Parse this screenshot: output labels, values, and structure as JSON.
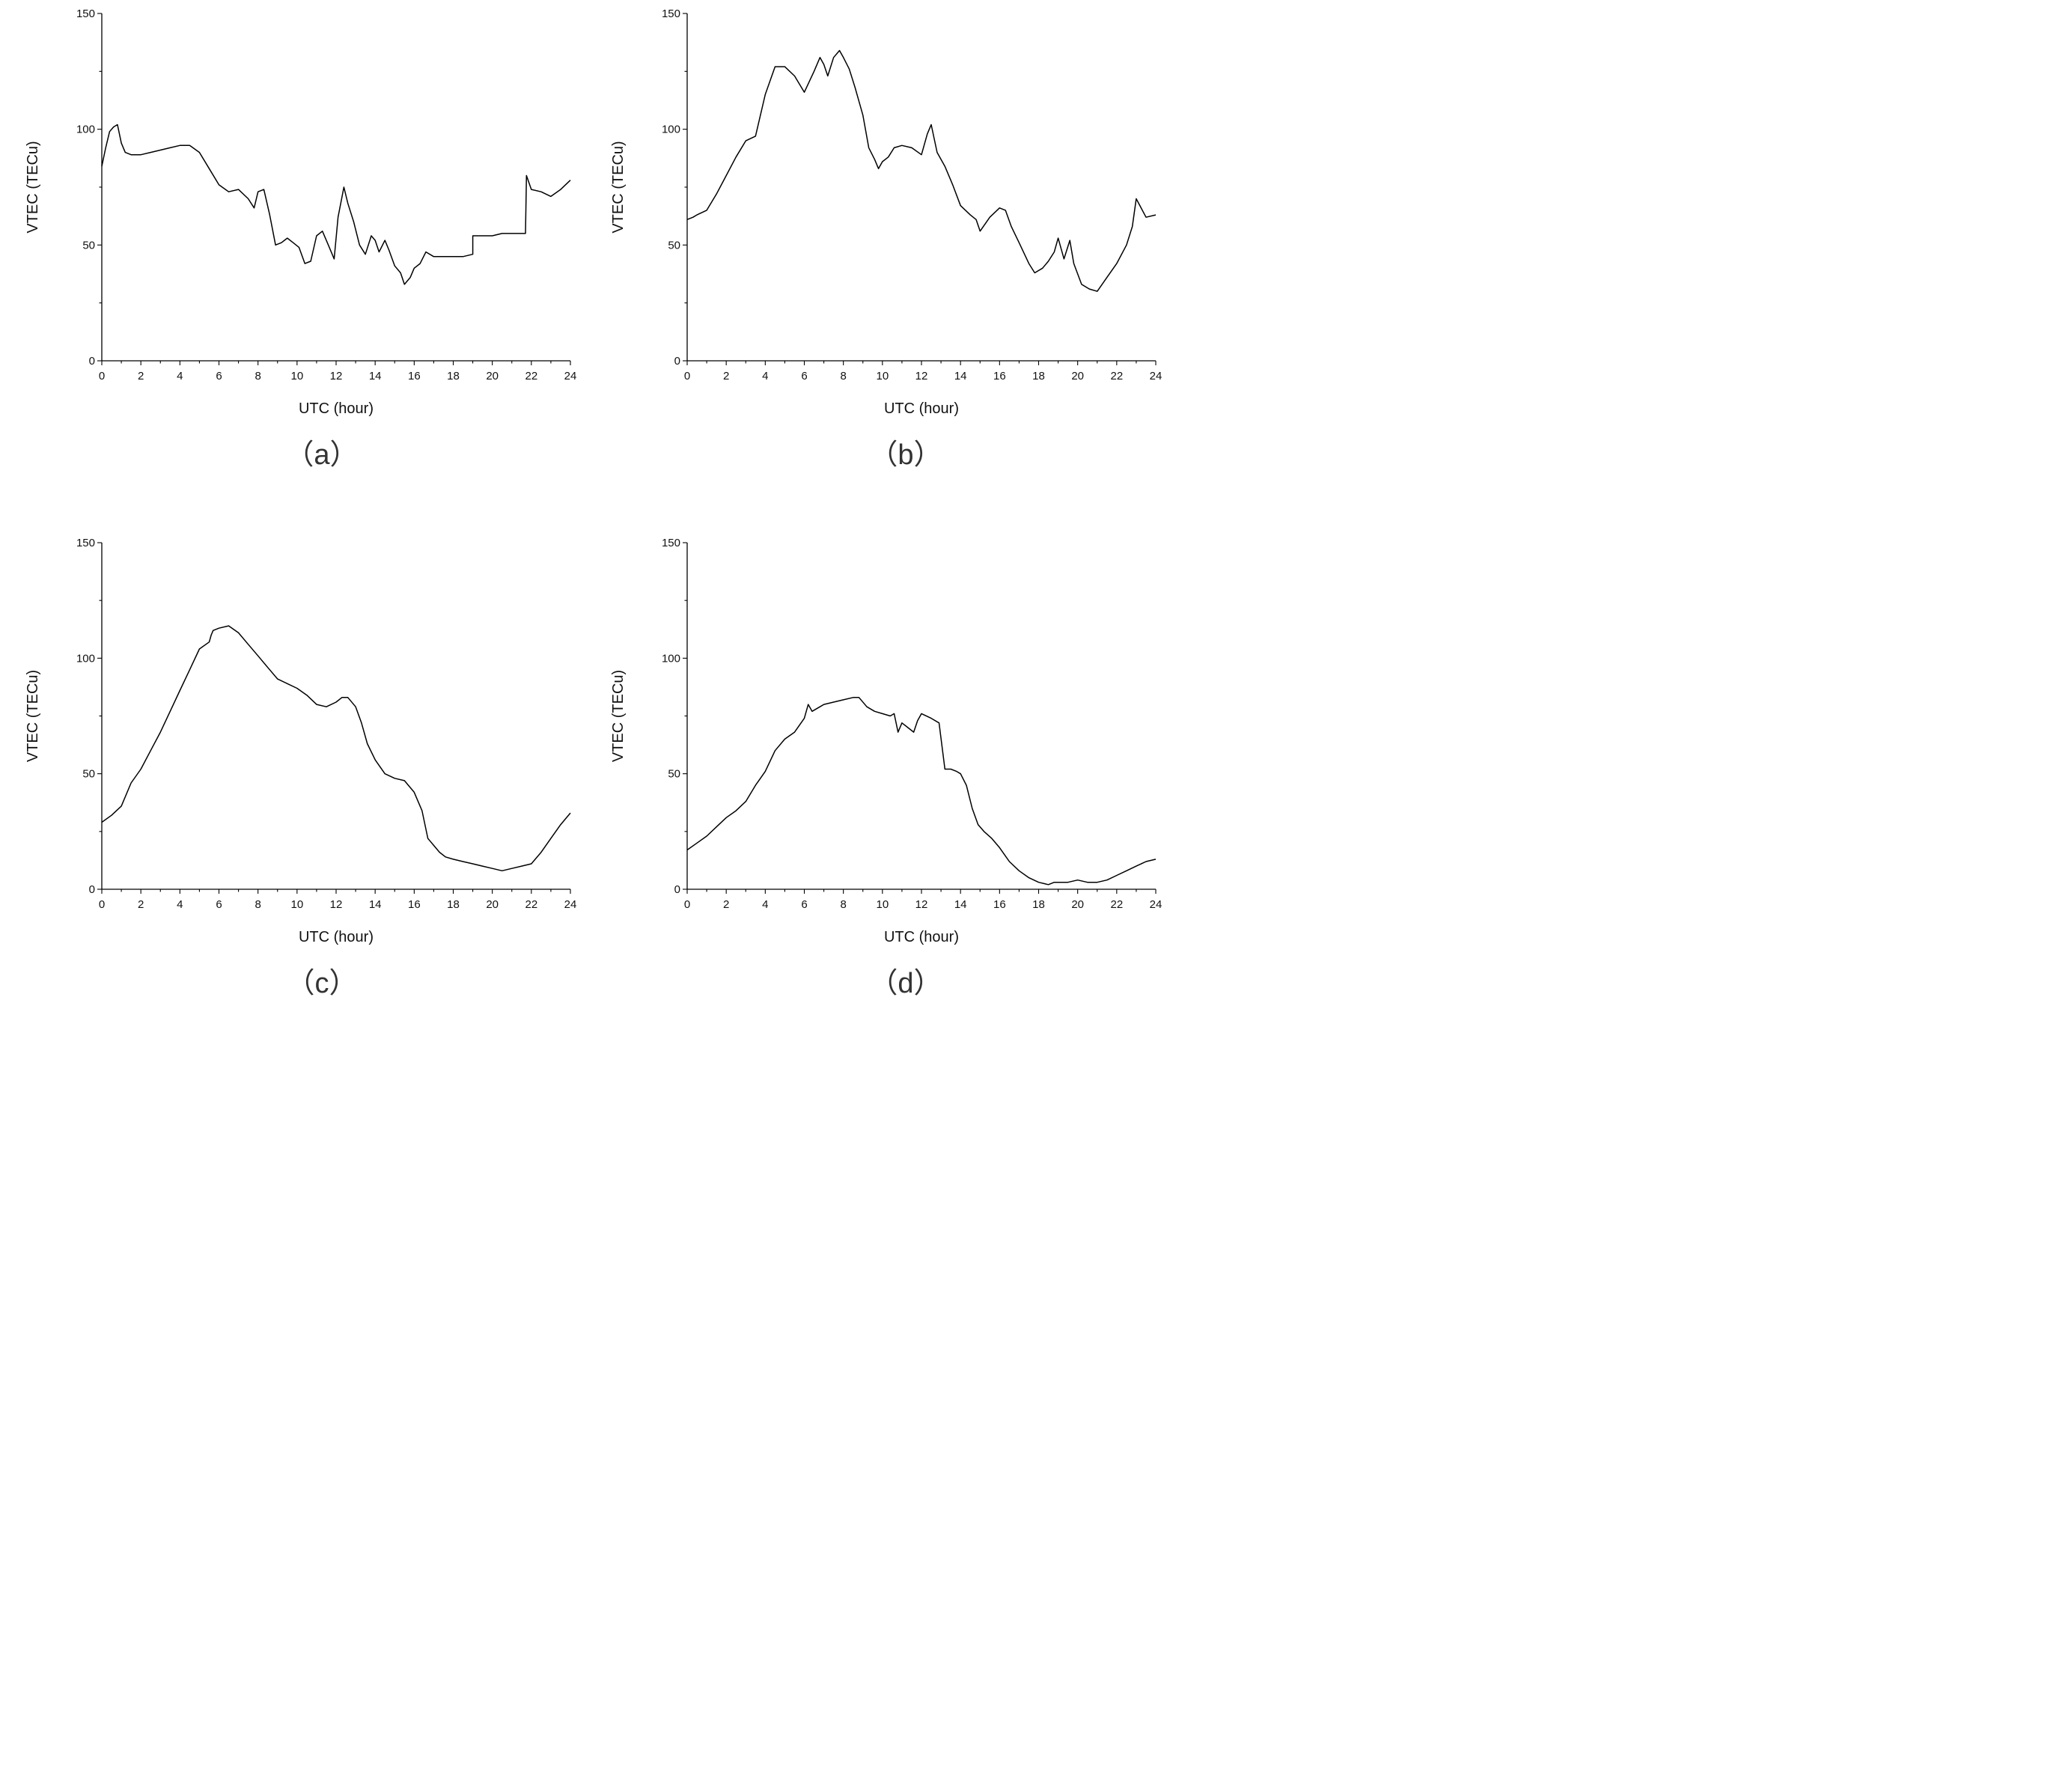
{
  "chart_data": [
    {
      "type": "line",
      "panel": "（a）",
      "xlabel": "UTC (hour)",
      "ylabel": "VTEC (TECu)",
      "xlim": [
        0,
        24
      ],
      "ylim": [
        0,
        150
      ],
      "xticks": [
        "0",
        "2",
        "4",
        "6",
        "8",
        "10",
        "12",
        "14",
        "16",
        "18",
        "20",
        "22",
        "24"
      ],
      "yticks": [
        "0",
        "50",
        "100",
        "150"
      ],
      "grid": false,
      "series": [
        {
          "x": [
            0,
            0.2,
            0.4,
            0.6,
            0.8,
            1.0,
            1.2,
            1.5,
            2.0,
            2.5,
            3.0,
            3.5,
            4.0,
            4.5,
            5.0,
            5.5,
            6.0,
            6.5,
            7.0,
            7.5,
            7.8,
            8.0,
            8.3,
            8.6,
            8.9,
            9.2,
            9.5,
            9.8,
            10.1,
            10.4,
            10.7,
            11.0,
            11.3,
            11.6,
            11.9,
            12.1,
            12.4,
            12.6,
            12.9,
            13.2,
            13.5,
            13.8,
            14.0,
            14.2,
            14.5,
            14.7,
            15.0,
            15.3,
            15.5,
            15.8,
            16.0,
            16.3,
            16.6,
            17.0,
            17.5,
            18.0,
            18.5,
            19.0,
            19.0,
            19.5,
            20.0,
            20.5,
            21.0,
            21.5,
            21.7,
            21.75,
            22.0,
            22.5,
            23.0,
            23.5,
            24.0
          ],
          "y": [
            84,
            92,
            99,
            101,
            102,
            94,
            90,
            89,
            89,
            90,
            91,
            92,
            93,
            93,
            90,
            83,
            76,
            73,
            74,
            70,
            66,
            73,
            74,
            63,
            50,
            51,
            53,
            51,
            49,
            42,
            43,
            54,
            56,
            50,
            44,
            62,
            75,
            68,
            60,
            50,
            46,
            54,
            52,
            47,
            52,
            48,
            41,
            38,
            33,
            36,
            40,
            42,
            47,
            45,
            45,
            45,
            45,
            46,
            54,
            54,
            54,
            55,
            55,
            55,
            55,
            80,
            74,
            73,
            71,
            74,
            78
          ]
        }
      ]
    },
    {
      "type": "line",
      "panel": "（b）",
      "xlabel": "UTC (hour)",
      "ylabel": "VTEC (TECu)",
      "xlim": [
        0,
        24
      ],
      "ylim": [
        0,
        150
      ],
      "xticks": [
        "0",
        "2",
        "4",
        "6",
        "8",
        "10",
        "12",
        "14",
        "16",
        "18",
        "20",
        "22",
        "24"
      ],
      "yticks": [
        "0",
        "50",
        "100",
        "150"
      ],
      "grid": false,
      "series": [
        {
          "x": [
            0,
            0.3,
            0.5,
            1.0,
            1.5,
            2.0,
            2.5,
            3.0,
            3.5,
            4.0,
            4.5,
            5.0,
            5.5,
            6.0,
            6.5,
            6.8,
            7.0,
            7.2,
            7.5,
            7.8,
            8.0,
            8.3,
            8.6,
            9.0,
            9.3,
            9.6,
            9.8,
            10.0,
            10.3,
            10.6,
            11.0,
            11.5,
            12.0,
            12.3,
            12.5,
            12.8,
            13.2,
            13.6,
            14.0,
            14.5,
            14.8,
            15.0,
            15.5,
            16.0,
            16.3,
            16.6,
            17.0,
            17.5,
            17.8,
            18.2,
            18.5,
            18.8,
            19.0,
            19.3,
            19.6,
            19.8,
            20.2,
            20.6,
            21.0,
            21.5,
            22.0,
            22.5,
            22.8,
            23.0,
            23.5,
            24.0
          ],
          "y": [
            61,
            62,
            63,
            65,
            72,
            80,
            88,
            95,
            97,
            115,
            127,
            127,
            123,
            116,
            125,
            131,
            128,
            123,
            131,
            134,
            131,
            126,
            118,
            106,
            92,
            87,
            83,
            86,
            88,
            92,
            93,
            92,
            89,
            98,
            102,
            90,
            84,
            76,
            67,
            63,
            61,
            56,
            62,
            66,
            65,
            58,
            51,
            42,
            38,
            40,
            43,
            47,
            53,
            44,
            52,
            42,
            33,
            31,
            30,
            36,
            42,
            50,
            58,
            70,
            62,
            63
          ]
        }
      ]
    },
    {
      "type": "line",
      "panel": "（c）",
      "xlabel": "UTC (hour)",
      "ylabel": "VTEC (TECu)",
      "xlim": [
        0,
        24
      ],
      "ylim": [
        0,
        150
      ],
      "xticks": [
        "0",
        "2",
        "4",
        "6",
        "8",
        "10",
        "12",
        "14",
        "16",
        "18",
        "20",
        "22",
        "24"
      ],
      "yticks": [
        "0",
        "50",
        "100",
        "150"
      ],
      "grid": false,
      "series": [
        {
          "x": [
            0,
            0.5,
            1.0,
            1.5,
            2.0,
            2.5,
            3.0,
            3.5,
            4.0,
            4.5,
            5.0,
            5.5,
            5.6,
            5.7,
            6.0,
            6.5,
            7.0,
            7.5,
            8.0,
            8.5,
            9.0,
            9.5,
            10.0,
            10.5,
            11.0,
            11.5,
            12.0,
            12.3,
            12.6,
            13.0,
            13.3,
            13.6,
            14.0,
            14.5,
            15.0,
            15.5,
            16.0,
            16.4,
            16.7,
            16.8,
            17.0,
            17.3,
            17.6,
            18.0,
            18.5,
            19.0,
            19.5,
            20.0,
            20.5,
            21.0,
            21.5,
            22.0,
            22.5,
            23.0,
            23.5,
            24.0
          ],
          "y": [
            29,
            32,
            36,
            46,
            52,
            60,
            68,
            77,
            86,
            95,
            104,
            107,
            110,
            112,
            113,
            114,
            111,
            106,
            101,
            96,
            91,
            89,
            87,
            84,
            80,
            79,
            81,
            83,
            83,
            79,
            72,
            63,
            56,
            50,
            48,
            47,
            42,
            34,
            22,
            21,
            19,
            16,
            14,
            13,
            12,
            11,
            10,
            9,
            8,
            9,
            10,
            11,
            16,
            22,
            28,
            33
          ]
        }
      ]
    },
    {
      "type": "line",
      "panel": "（d）",
      "xlabel": "UTC (hour)",
      "ylabel": "VTEC (TECu)",
      "xlim": [
        0,
        24
      ],
      "ylim": [
        0,
        150
      ],
      "xticks": [
        "0",
        "2",
        "4",
        "6",
        "8",
        "10",
        "12",
        "14",
        "16",
        "18",
        "20",
        "22",
        "24"
      ],
      "yticks": [
        "0",
        "50",
        "100",
        "150"
      ],
      "grid": false,
      "series": [
        {
          "x": [
            0,
            0.5,
            1.0,
            1.5,
            2.0,
            2.5,
            3.0,
            3.5,
            4.0,
            4.5,
            5.0,
            5.5,
            6.0,
            6.2,
            6.4,
            6.8,
            7.0,
            7.5,
            8.0,
            8.5,
            8.8,
            9.2,
            9.6,
            10.0,
            10.4,
            10.6,
            10.8,
            11.0,
            11.3,
            11.6,
            11.8,
            12.0,
            12.5,
            12.9,
            13.2,
            13.5,
            13.8,
            14.0,
            14.3,
            14.6,
            14.9,
            15.2,
            15.6,
            16.0,
            16.5,
            17.0,
            17.5,
            18.0,
            18.5,
            18.8,
            19.0,
            19.5,
            20.0,
            20.5,
            21.0,
            21.5,
            22.0,
            22.5,
            23.0,
            23.5,
            24.0
          ],
          "y": [
            17,
            20,
            23,
            27,
            31,
            34,
            38,
            45,
            51,
            60,
            65,
            68,
            74,
            80,
            77,
            79,
            80,
            81,
            82,
            83,
            83,
            79,
            77,
            76,
            75,
            76,
            68,
            72,
            70,
            68,
            73,
            76,
            74,
            72,
            52,
            52,
            51,
            50,
            45,
            35,
            28,
            25,
            22,
            18,
            12,
            8,
            5,
            3,
            2,
            3,
            3,
            3,
            4,
            3,
            3,
            4,
            6,
            8,
            10,
            12,
            13
          ]
        }
      ]
    }
  ]
}
